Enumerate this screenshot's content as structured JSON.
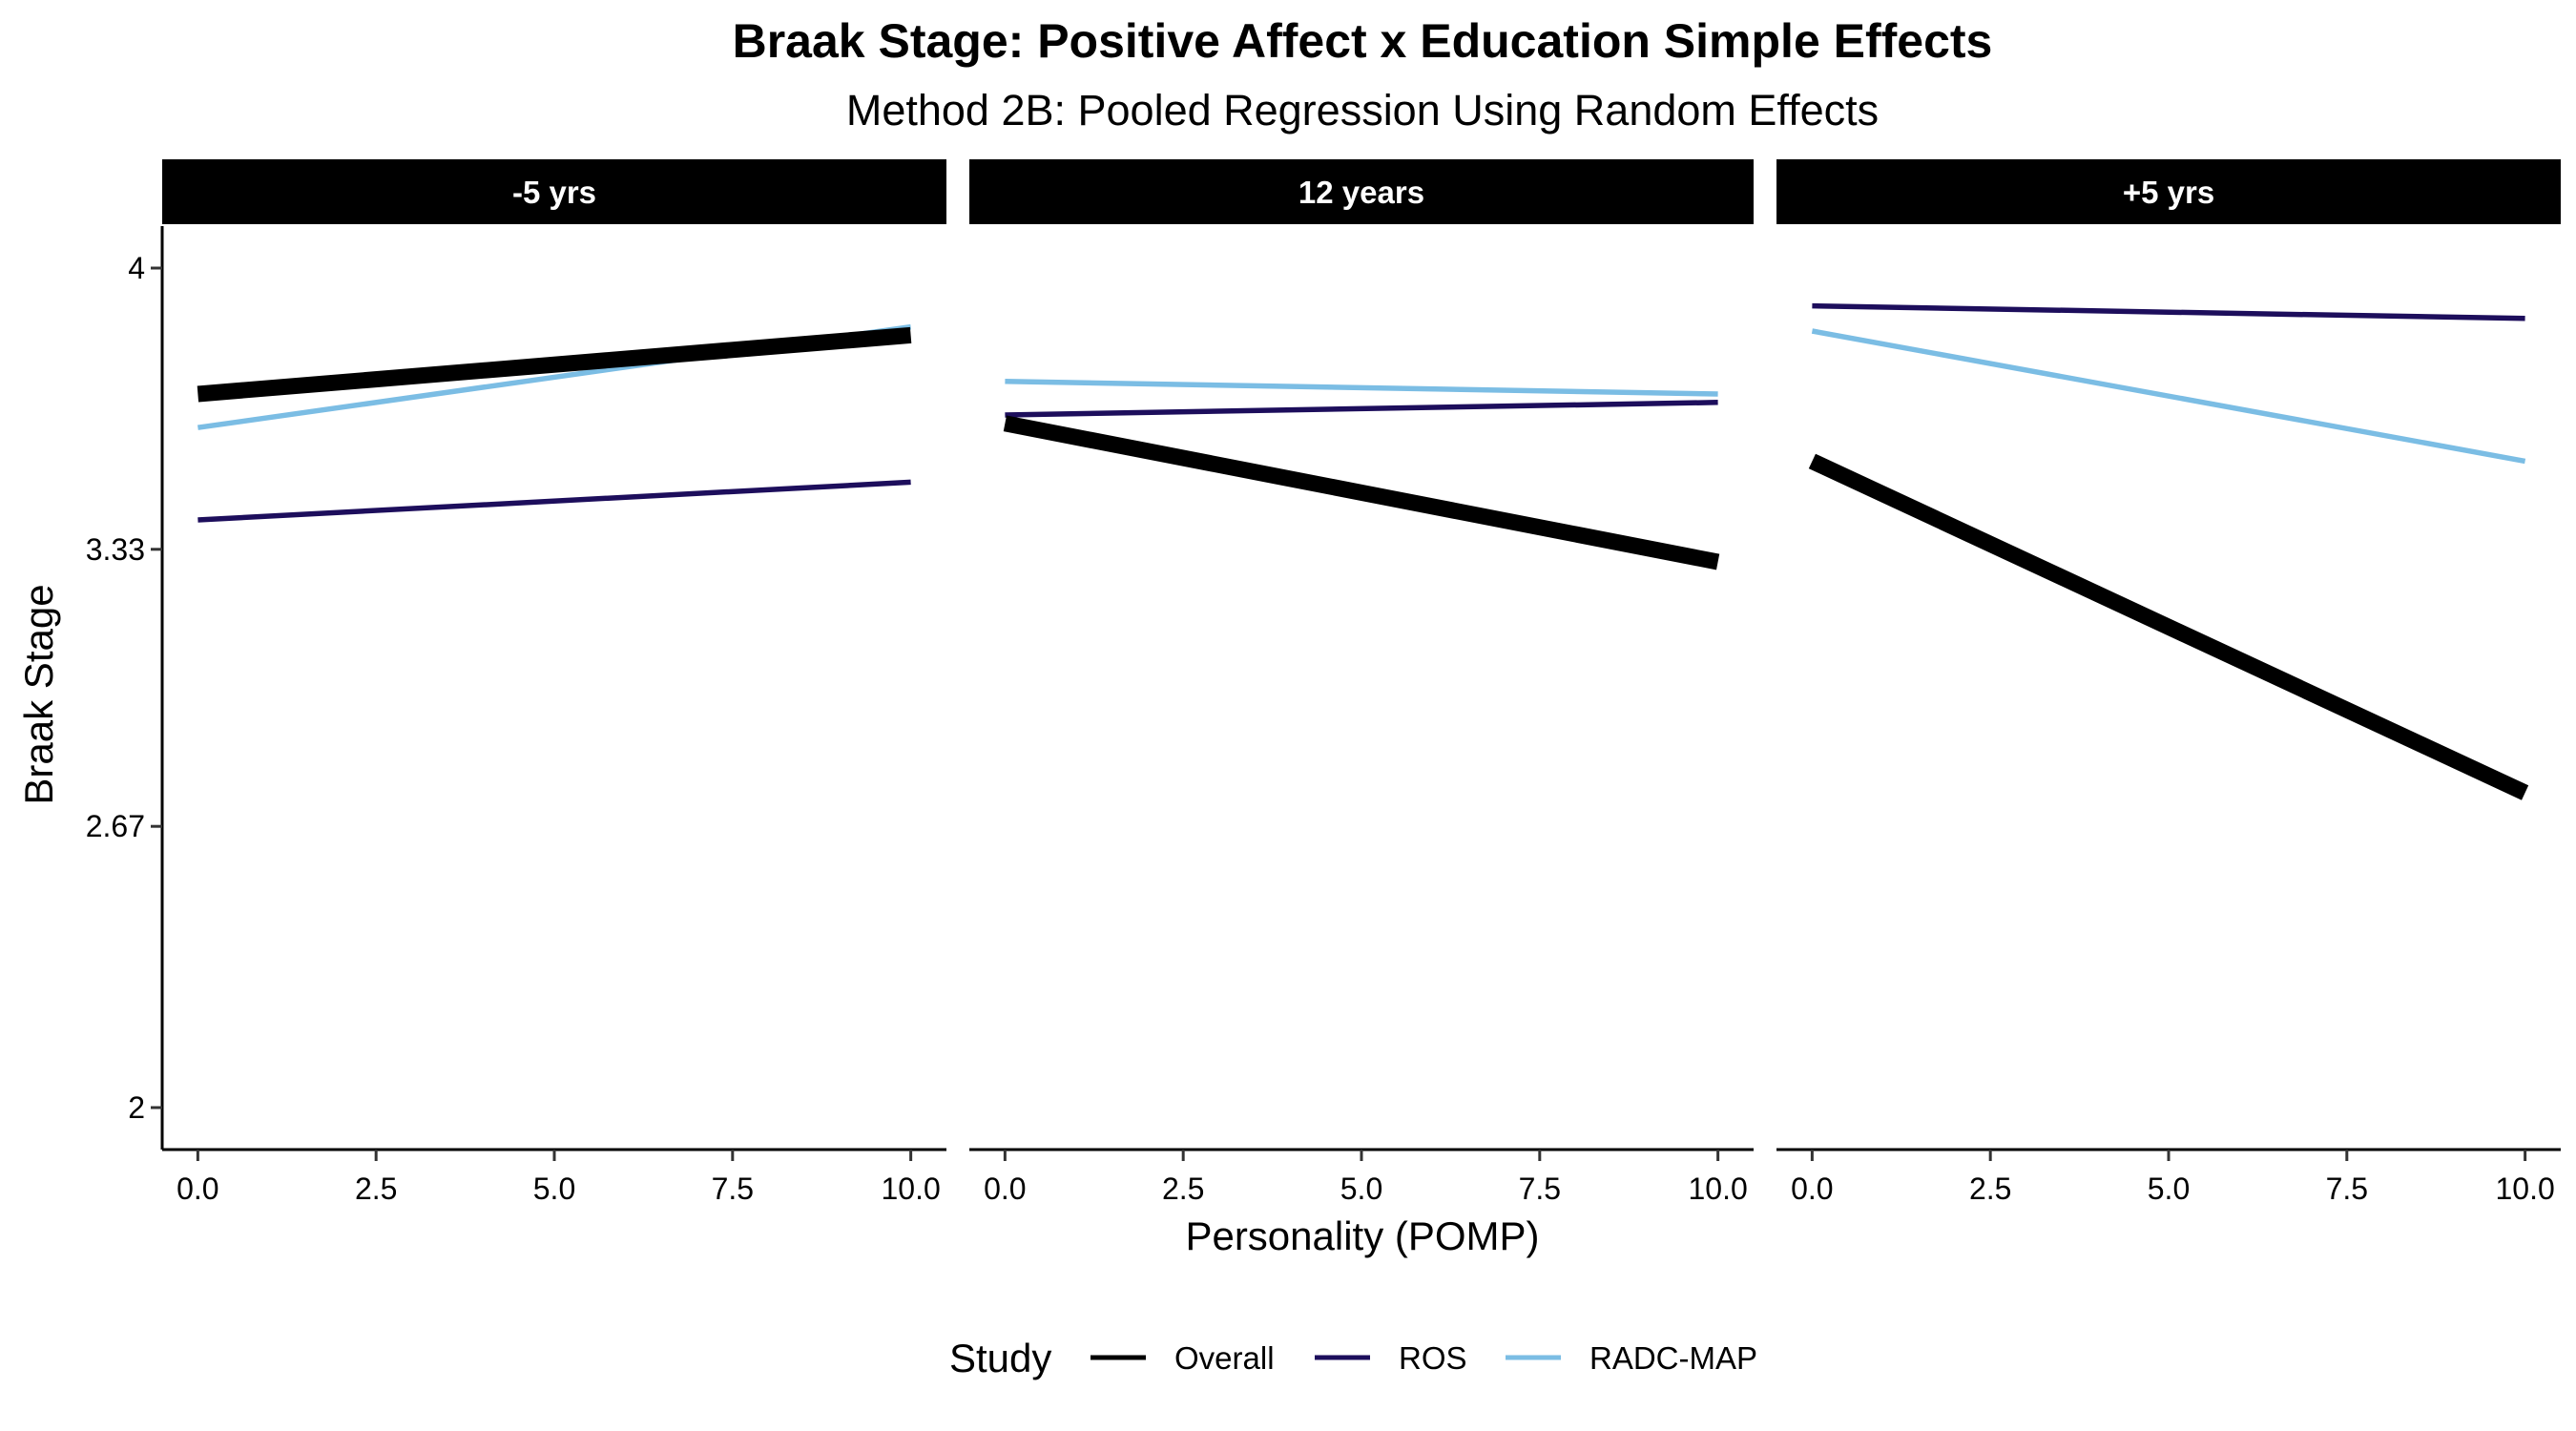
{
  "chart_data": {
    "type": "line",
    "title": "Braak Stage: Positive Affect x Education Simple Effects",
    "subtitle": "Method 2B: Pooled Regression Using Random Effects",
    "xlabel": "Personality (POMP)",
    "ylabel": "Braak Stage",
    "xlim": [
      -0.5,
      10.5
    ],
    "ylim": [
      1.9,
      4.1
    ],
    "x_ticks": [
      0,
      2.5,
      5,
      7.5,
      10
    ],
    "x_tick_labels": [
      "0.0",
      "2.5",
      "5.0",
      "7.5",
      "10.0"
    ],
    "y_ticks": [
      2,
      2.67,
      3.33,
      4
    ],
    "y_tick_labels": [
      "2",
      "2.67",
      "3.33",
      "4"
    ],
    "grid": false,
    "legend": {
      "title": "Study",
      "position": "bottom",
      "entries": [
        "Overall",
        "ROS",
        "RADC-MAP"
      ]
    },
    "series_styles": {
      "Overall": {
        "color": "#000000",
        "width": "thick"
      },
      "ROS": {
        "color": "#1d0e5c",
        "width": "thin"
      },
      "RADC-MAP": {
        "color": "#7bbde4",
        "width": "thin"
      }
    },
    "panels": [
      {
        "label": "-5 yrs",
        "series": [
          {
            "name": "Overall",
            "x": [
              0,
              10
            ],
            "y": [
              3.7,
              3.84
            ]
          },
          {
            "name": "ROS",
            "x": [
              0,
              10
            ],
            "y": [
              3.4,
              3.49
            ]
          },
          {
            "name": "RADC-MAP",
            "x": [
              0,
              10
            ],
            "y": [
              3.62,
              3.86
            ]
          }
        ]
      },
      {
        "label": "12 years",
        "series": [
          {
            "name": "Overall",
            "x": [
              0,
              10
            ],
            "y": [
              3.63,
              3.3
            ]
          },
          {
            "name": "ROS",
            "x": [
              0,
              10
            ],
            "y": [
              3.65,
              3.68
            ]
          },
          {
            "name": "RADC-MAP",
            "x": [
              0,
              10
            ],
            "y": [
              3.73,
              3.7
            ]
          }
        ]
      },
      {
        "label": "+5 yrs",
        "series": [
          {
            "name": "Overall",
            "x": [
              0,
              10
            ],
            "y": [
              3.54,
              2.75
            ]
          },
          {
            "name": "ROS",
            "x": [
              0,
              10
            ],
            "y": [
              3.91,
              3.88
            ]
          },
          {
            "name": "RADC-MAP",
            "x": [
              0,
              10
            ],
            "y": [
              3.85,
              3.54
            ]
          }
        ]
      }
    ]
  }
}
